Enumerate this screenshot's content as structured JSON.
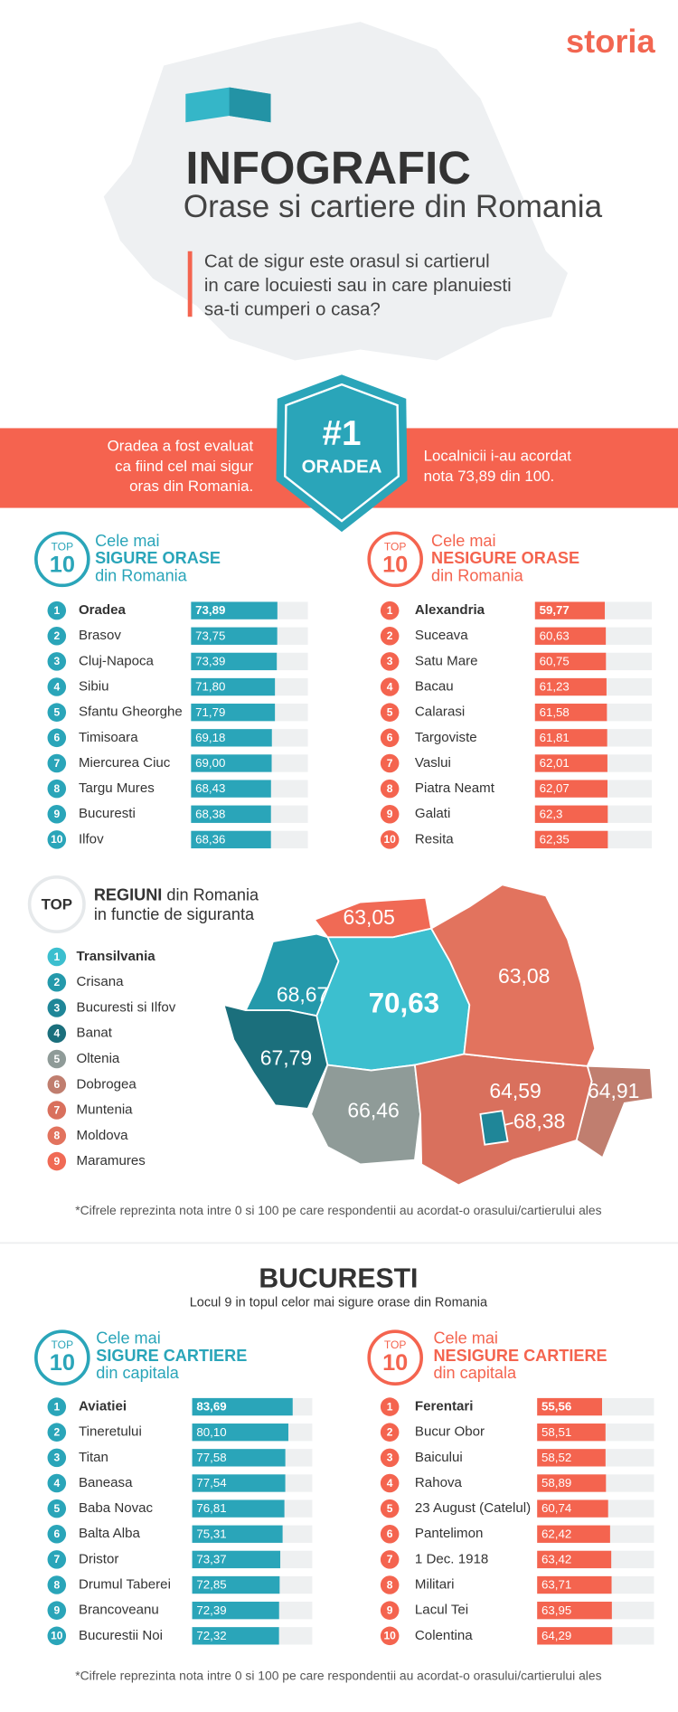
{
  "logo": "storia",
  "header": {
    "title": "INFOGRAFIC",
    "subtitle": "Orase si cartiere din Romania",
    "question": [
      "Cat de sigur este orasul si cartierul",
      "in care locuiesti sau in care planuiesti",
      "sa-ti cumperi o casa?"
    ]
  },
  "banner": {
    "left": [
      "Oradea a fost evaluat",
      "ca fiind cel mai sigur",
      "oras din Romania."
    ],
    "badge_rank": "#1",
    "badge_city": "ORADEA",
    "right": [
      "Localnicii i-au acordat",
      "nota 73,89 din 100."
    ]
  },
  "cities": {
    "safe": {
      "badge_top": "TOP",
      "badge_num": 10,
      "heading": [
        "Cele mai",
        "SIGURE ORASE",
        "din Romania"
      ],
      "color": "#2aa5b9",
      "xlim": [
        0,
        100
      ],
      "items": [
        {
          "rank": 1,
          "name": "Oradea",
          "value": 73.89,
          "label": "73,89"
        },
        {
          "rank": 2,
          "name": "Brasov",
          "value": 73.75,
          "label": "73,75"
        },
        {
          "rank": 3,
          "name": "Cluj-Napoca",
          "value": 73.39,
          "label": "73,39"
        },
        {
          "rank": 4,
          "name": "Sibiu",
          "value": 71.8,
          "label": "71,80"
        },
        {
          "rank": 5,
          "name": "Sfantu Gheorghe",
          "value": 71.79,
          "label": "71,79"
        },
        {
          "rank": 6,
          "name": "Timisoara",
          "value": 69.18,
          "label": "69,18"
        },
        {
          "rank": 7,
          "name": "Miercurea Ciuc",
          "value": 69.0,
          "label": "69,00"
        },
        {
          "rank": 8,
          "name": "Targu Mures",
          "value": 68.43,
          "label": "68,43"
        },
        {
          "rank": 9,
          "name": "Bucuresti",
          "value": 68.38,
          "label": "68,38"
        },
        {
          "rank": 10,
          "name": "Ilfov",
          "value": 68.36,
          "label": "68,36"
        }
      ]
    },
    "unsafe": {
      "badge_top": "TOP",
      "badge_num": 10,
      "heading": [
        "Cele mai",
        "NESIGURE ORASE",
        "din Romania"
      ],
      "color": "#f4644f",
      "xlim": [
        0,
        100
      ],
      "items": [
        {
          "rank": 1,
          "name": "Alexandria",
          "value": 59.77,
          "label": "59,77"
        },
        {
          "rank": 2,
          "name": "Suceava",
          "value": 60.63,
          "label": "60,63"
        },
        {
          "rank": 3,
          "name": "Satu Mare",
          "value": 60.75,
          "label": "60,75"
        },
        {
          "rank": 4,
          "name": "Bacau",
          "value": 61.23,
          "label": "61,23"
        },
        {
          "rank": 5,
          "name": "Calarasi",
          "value": 61.58,
          "label": "61,58"
        },
        {
          "rank": 6,
          "name": "Targoviste",
          "value": 61.81,
          "label": "61,81"
        },
        {
          "rank": 7,
          "name": "Vaslui",
          "value": 62.01,
          "label": "62,01"
        },
        {
          "rank": 8,
          "name": "Piatra Neamt",
          "value": 62.07,
          "label": "62,07"
        },
        {
          "rank": 9,
          "name": "Galati",
          "value": 62.3,
          "label": "62,3"
        },
        {
          "rank": 10,
          "name": "Resita",
          "value": 62.35,
          "label": "62,35"
        }
      ]
    }
  },
  "regions": {
    "badge": "TOP",
    "heading_bold": "REGIUNI",
    "heading_rest": "din Romania",
    "heading_line2": "in functie de siguranta",
    "items": [
      {
        "rank": 1,
        "name": "Transilvania",
        "color": "#3cbfcf",
        "map_value": "70,63"
      },
      {
        "rank": 2,
        "name": "Crisana",
        "color": "#2499ab",
        "map_value": "68,67"
      },
      {
        "rank": 3,
        "name": "Bucuresti si Ilfov",
        "color": "#1f8698",
        "map_value": "68,38"
      },
      {
        "rank": 4,
        "name": "Banat",
        "color": "#1b6f7c",
        "map_value": "67,79"
      },
      {
        "rank": 5,
        "name": "Oltenia",
        "color": "#8f9b98",
        "map_value": "66,46"
      },
      {
        "rank": 6,
        "name": "Dobrogea",
        "color": "#c07e6f",
        "map_value": "64,91"
      },
      {
        "rank": 7,
        "name": "Muntenia",
        "color": "#d9705d",
        "map_value": "64,59"
      },
      {
        "rank": 8,
        "name": "Moldova",
        "color": "#e2735e",
        "map_value": "63,08"
      },
      {
        "rank": 9,
        "name": "Maramures",
        "color": "#f06a55",
        "map_value": "63,05"
      }
    ]
  },
  "note1": "*Cifrele reprezinta nota intre 0 si 100 pe care respondentii au acordat-o orasului/cartierului ales",
  "bucuresti": {
    "title": "BUCURESTI",
    "subtitle": "Locul 9 in topul celor mai sigure orase din Romania"
  },
  "districts": {
    "safe": {
      "badge_top": "TOP",
      "badge_num": 10,
      "heading": [
        "Cele mai",
        "SIGURE CARTIERE",
        "din capitala"
      ],
      "color": "#2aa5b9",
      "xlim": [
        0,
        100
      ],
      "items": [
        {
          "rank": 1,
          "name": "Aviatiei",
          "value": 83.69,
          "label": "83,69"
        },
        {
          "rank": 2,
          "name": "Tineretului",
          "value": 80.1,
          "label": "80,10"
        },
        {
          "rank": 3,
          "name": "Titan",
          "value": 77.58,
          "label": "77,58"
        },
        {
          "rank": 4,
          "name": "Baneasa",
          "value": 77.54,
          "label": "77,54"
        },
        {
          "rank": 5,
          "name": "Baba Novac",
          "value": 76.81,
          "label": "76,81"
        },
        {
          "rank": 6,
          "name": "Balta Alba",
          "value": 75.31,
          "label": "75,31"
        },
        {
          "rank": 7,
          "name": "Dristor",
          "value": 73.37,
          "label": "73,37"
        },
        {
          "rank": 8,
          "name": "Drumul Taberei",
          "value": 72.85,
          "label": "72,85"
        },
        {
          "rank": 9,
          "name": "Brancoveanu",
          "value": 72.39,
          "label": "72,39"
        },
        {
          "rank": 10,
          "name": "Bucurestii Noi",
          "value": 72.32,
          "label": "72,32"
        }
      ]
    },
    "unsafe": {
      "badge_top": "TOP",
      "badge_num": 10,
      "heading": [
        "Cele mai",
        "NESIGURE CARTIERE",
        "din capitala"
      ],
      "color": "#f4644f",
      "xlim": [
        0,
        100
      ],
      "items": [
        {
          "rank": 1,
          "name": "Ferentari",
          "value": 55.56,
          "label": "55,56"
        },
        {
          "rank": 2,
          "name": "Bucur Obor",
          "value": 58.51,
          "label": "58,51"
        },
        {
          "rank": 3,
          "name": "Baicului",
          "value": 58.52,
          "label": "58,52"
        },
        {
          "rank": 4,
          "name": "Rahova",
          "value": 58.89,
          "label": "58,89"
        },
        {
          "rank": 5,
          "name": "23 August (Catelul)",
          "value": 60.74,
          "label": "60,74"
        },
        {
          "rank": 6,
          "name": "Pantelimon",
          "value": 62.42,
          "label": "62,42"
        },
        {
          "rank": 7,
          "name": "1 Dec. 1918",
          "value": 63.42,
          "label": "63,42"
        },
        {
          "rank": 8,
          "name": "Militari",
          "value": 63.71,
          "label": "63,71"
        },
        {
          "rank": 9,
          "name": "Lacul Tei",
          "value": 63.95,
          "label": "63,95"
        },
        {
          "rank": 10,
          "name": "Colentina",
          "value": 64.29,
          "label": "64,29"
        }
      ]
    }
  },
  "note2": "*Cifrele reprezinta nota intre 0 si 100 pe care respondentii au acordat-o orasului/cartierului ales"
}
